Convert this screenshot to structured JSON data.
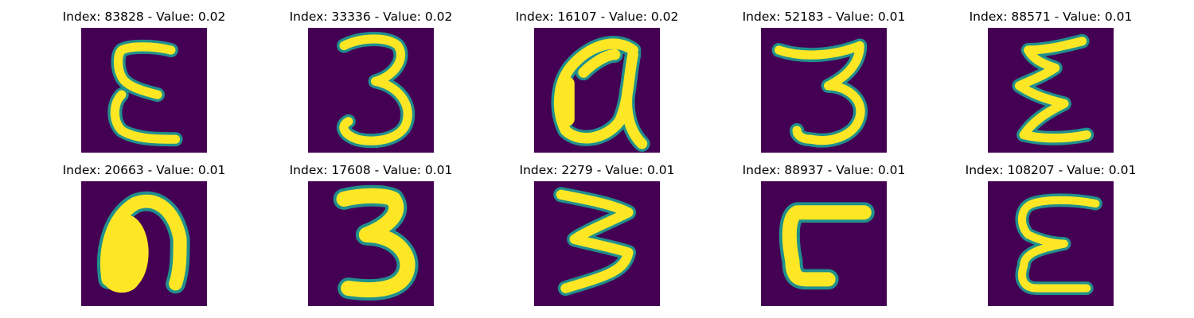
{
  "figure": {
    "colors": {
      "background": "#440154",
      "stroke": "#fde725",
      "edge": "#21908d"
    },
    "panels": [
      {
        "title": "Index: 83828 - Value: 0.02",
        "glyph": "epsilon-thin"
      },
      {
        "title": "Index: 33336 - Value: 0.02",
        "glyph": "three-round"
      },
      {
        "title": "Index: 16107 - Value: 0.02",
        "glyph": "alpha-loop"
      },
      {
        "title": "Index: 52183 - Value: 0.01",
        "glyph": "three-flat-top"
      },
      {
        "title": "Index: 88571 - Value: 0.01",
        "glyph": "sigma-zigzag"
      },
      {
        "title": "Index: 20663 - Value: 0.01",
        "glyph": "arch-blob"
      },
      {
        "title": "Index: 17608 - Value: 0.01",
        "glyph": "three-bold"
      },
      {
        "title": "Index: 2279 - Value: 0.01",
        "glyph": "three-zigzag"
      },
      {
        "title": "Index: 88937 - Value: 0.01",
        "glyph": "corner-bracket"
      },
      {
        "title": "Index: 108207 - Value: 0.01",
        "glyph": "epsilon-wide"
      }
    ]
  }
}
